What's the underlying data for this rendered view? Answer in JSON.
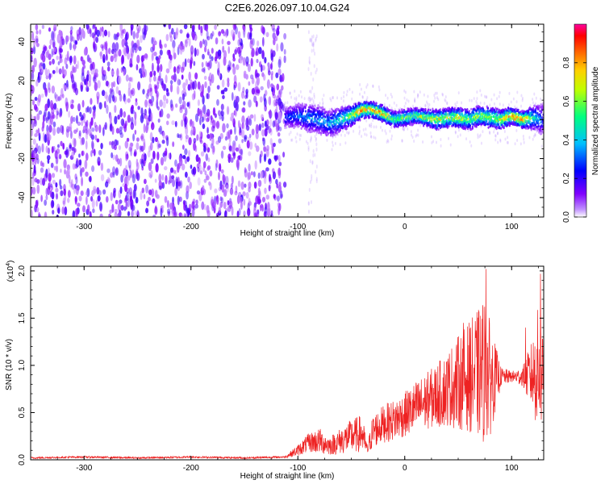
{
  "title": "C2E6.2026.097.10.04.G24",
  "chart_data": [
    {
      "type": "heatmap",
      "title": "C2E6.2026.097.10.04.G24",
      "xlabel": "Height of straight line (km)",
      "ylabel": "Frequency (Hz)",
      "xlim": [
        -350,
        130
      ],
      "ylim": [
        -50,
        49
      ],
      "x_ticks": [
        -300,
        -200,
        -100,
        0,
        100
      ],
      "y_ticks": [
        -40,
        -20,
        0,
        20,
        40
      ],
      "x_tick_labels": [
        "-300",
        "-200",
        "-100",
        "0",
        "100"
      ],
      "y_tick_labels": [
        "-40",
        "-20",
        "0",
        "20",
        "40"
      ],
      "colorbar": {
        "label": "Normalized spectral amplitude",
        "range": [
          0,
          1
        ],
        "ticks": [
          0.0,
          0.2,
          0.4,
          0.6,
          0.8
        ],
        "tick_labels": [
          "0.0",
          "0.2",
          "0.4",
          "0.6",
          "0.8"
        ],
        "colormap": [
          "#ffffff",
          "#8000ff",
          "#0000ff",
          "#00bfff",
          "#00ff80",
          "#ffff00",
          "#ff8000",
          "#ff0000",
          "#ff00a0"
        ]
      },
      "regions": [
        {
          "name": "noise",
          "x_range": [
            -350,
            -112
          ],
          "freq_range": [
            -50,
            49
          ],
          "amplitude": [
            0.05,
            0.2
          ]
        },
        {
          "name": "faint-streak",
          "x_range": [
            -90,
            -82
          ],
          "freq_range": [
            -50,
            49
          ],
          "amplitude": [
            0.0,
            0.1
          ]
        },
        {
          "name": "signal",
          "x_range": [
            -112,
            130
          ],
          "center_freq": 0,
          "amplitude": [
            0.1,
            0.9
          ]
        }
      ],
      "signal_line": {
        "x": [
          -112,
          -100,
          -90,
          -80,
          -70,
          -60,
          -50,
          -40,
          -30,
          -20,
          -10,
          0,
          10,
          20,
          30,
          40,
          50,
          60,
          70,
          80,
          90,
          100,
          110,
          120,
          130
        ],
        "freq": [
          1,
          2,
          1,
          0,
          -2,
          0,
          2,
          5,
          5,
          3,
          0,
          1,
          2,
          1,
          0,
          1,
          1,
          0,
          2,
          1,
          0,
          2,
          0,
          1,
          0
        ],
        "amplitude": [
          0.3,
          0.35,
          0.4,
          0.4,
          0.4,
          0.5,
          0.65,
          0.85,
          0.8,
          0.75,
          0.6,
          0.6,
          0.6,
          0.65,
          0.7,
          0.65,
          0.7,
          0.6,
          0.65,
          0.6,
          0.7,
          0.8,
          0.85,
          0.5,
          0.3
        ],
        "halfwidth_hz": [
          5,
          6,
          7,
          7,
          7,
          6,
          5,
          4,
          4,
          4,
          4,
          4,
          4,
          4,
          5,
          5,
          5,
          5,
          5,
          5,
          5,
          4,
          4,
          6,
          8
        ]
      }
    },
    {
      "type": "line",
      "xlabel": "Height of straight line (km)",
      "ylabel": "SNR (10 * v/v)",
      "y_multiplier": "(x10",
      "y_multiplier_exp": "4",
      "y_multiplier_close": ")",
      "xlim": [
        -350,
        130
      ],
      "ylim": [
        0,
        2.05
      ],
      "x_ticks": [
        -300,
        -200,
        -100,
        0,
        100
      ],
      "y_ticks": [
        0.0,
        0.5,
        1.0,
        1.5,
        2.0
      ],
      "x_tick_labels": [
        "-300",
        "-200",
        "-100",
        "0",
        "100"
      ],
      "y_tick_labels": [
        "0.0",
        "0.5",
        "1.0",
        "1.5",
        "2.0"
      ],
      "color": "#ee2222",
      "series": [
        {
          "name": "SNR",
          "x": [
            -350,
            -300,
            -250,
            -200,
            -150,
            -112,
            -100,
            -90,
            -80,
            -70,
            -60,
            -50,
            -40,
            -35,
            -30,
            -20,
            -10,
            0,
            10,
            20,
            30,
            40,
            50,
            60,
            70,
            75,
            80,
            90,
            100,
            110,
            120,
            125,
            130
          ],
          "mean": [
            0.02,
            0.03,
            0.02,
            0.03,
            0.02,
            0.03,
            0.1,
            0.18,
            0.2,
            0.15,
            0.2,
            0.25,
            0.28,
            0.1,
            0.3,
            0.38,
            0.42,
            0.48,
            0.55,
            0.62,
            0.68,
            0.75,
            0.82,
            0.88,
            0.92,
            0.95,
            0.85,
            0.88,
            0.88,
            0.88,
            0.9,
            0.95,
            0.92
          ],
          "spread": [
            0.01,
            0.01,
            0.01,
            0.01,
            0.01,
            0.01,
            0.06,
            0.1,
            0.14,
            0.1,
            0.14,
            0.18,
            0.2,
            0.06,
            0.18,
            0.2,
            0.22,
            0.24,
            0.28,
            0.3,
            0.34,
            0.4,
            0.5,
            0.58,
            0.7,
            0.8,
            0.6,
            0.1,
            0.06,
            0.1,
            0.4,
            0.7,
            0.5
          ],
          "peaks": [
            {
              "x": 76,
              "value": 2.02
            },
            {
              "x": 127,
              "value": 1.97
            },
            {
              "x": 55,
              "value": 1.45
            },
            {
              "x": 113,
              "value": 1.4
            }
          ]
        }
      ]
    }
  ]
}
